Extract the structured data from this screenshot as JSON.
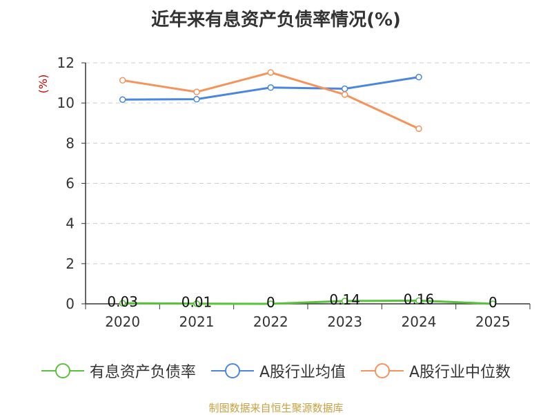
{
  "chart_data": {
    "type": "line",
    "title": "近年来有息资产负债率情况(%)",
    "ylabel": "(%)",
    "categories": [
      "2020",
      "2021",
      "2022",
      "2023",
      "2024",
      "2025"
    ],
    "ylim": [
      0,
      12
    ],
    "yticks": [
      "0",
      "2",
      "4",
      "6",
      "8",
      "10",
      "12"
    ],
    "grid": true,
    "legend_position": "bottom",
    "series": [
      {
        "name": "有息资产负债率",
        "color": "#5ac13c",
        "values": [
          0.03,
          0.01,
          0,
          0.14,
          0.16,
          0
        ],
        "labels": [
          "0.03",
          "0.01",
          "0",
          "0.14",
          "0.16",
          "0"
        ]
      },
      {
        "name": "A股行业均值",
        "color": "#4a86e0",
        "values": [
          10.17,
          10.19,
          10.77,
          10.71,
          11.29,
          null
        ]
      },
      {
        "name": "A股行业中位数",
        "color": "#f5935a",
        "values": [
          11.13,
          10.55,
          11.52,
          10.42,
          8.72,
          null
        ]
      }
    ]
  },
  "source": "制图数据来自恒生聚源数据库"
}
